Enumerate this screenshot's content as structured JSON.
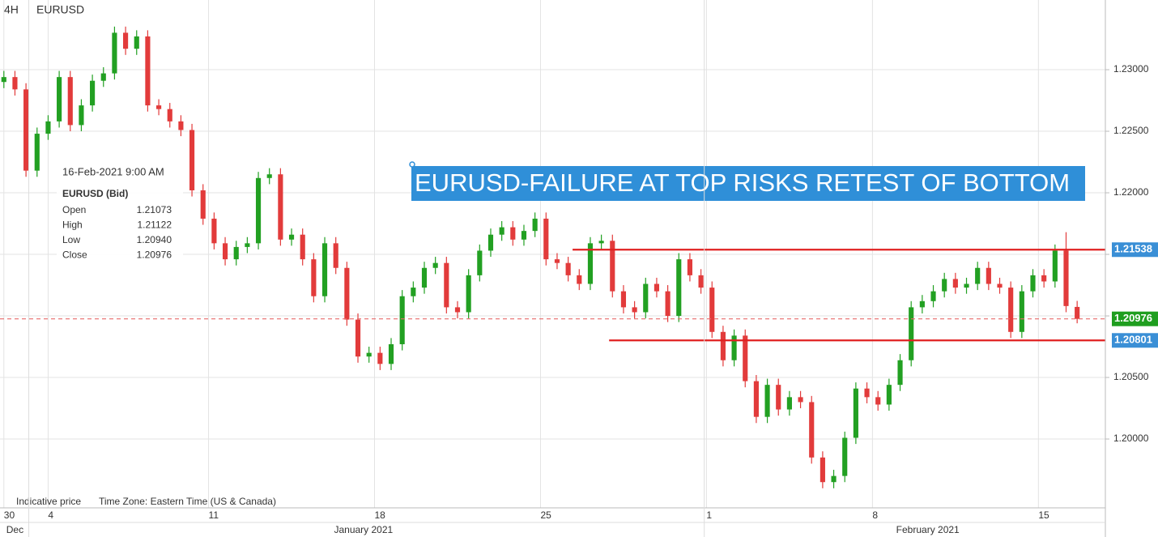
{
  "chart_data": {
    "type": "candlestick",
    "timeframe": "4H",
    "title": "EURUSD",
    "annotation": "EURUSD-FAILURE AT TOP RISKS RETEST OF BOTTOM",
    "footer_left": "Indicative price",
    "footer_right": "Time Zone: Eastern Time (US & Canada)",
    "up_color": "#22a022",
    "down_color": "#e23b3b",
    "grid": true,
    "xlim": [
      -0.7,
      199.1
    ],
    "ylim": [
      1.19441,
      1.23566
    ],
    "xticks": [
      {
        "value": 0,
        "label": "30"
      },
      {
        "value": 8,
        "label": "4"
      },
      {
        "value": 37,
        "label": "11"
      },
      {
        "value": 67,
        "label": "18"
      },
      {
        "value": 97,
        "label": "25"
      },
      {
        "value": 127,
        "label": "1"
      },
      {
        "value": 157,
        "label": "8"
      },
      {
        "value": 187,
        "label": "15"
      }
    ],
    "month_ticks": [
      {
        "value": 2,
        "label": "Dec"
      },
      {
        "value": 65,
        "label": "January 2021"
      },
      {
        "value": 167,
        "label": "February 2021"
      }
    ],
    "month_separators": [
      4.5,
      126.6
    ],
    "yticks": [
      {
        "value": 1.2,
        "label": "1.20000"
      },
      {
        "value": 1.205,
        "label": "1.20500"
      },
      {
        "value": 1.21,
        "label": ""
      },
      {
        "value": 1.215,
        "label": ""
      },
      {
        "value": 1.22,
        "label": "1.22000"
      },
      {
        "value": 1.225,
        "label": "1.22500"
      },
      {
        "value": 1.23,
        "label": "1.23000"
      }
    ],
    "levels": [
      {
        "value": 1.21538,
        "label": "1.21538",
        "x_start": 102.8,
        "color": "#e02020",
        "badge": "#3a8fd6"
      },
      {
        "value": 1.20801,
        "label": "1.20801",
        "x_start": 109.4,
        "color": "#e02020",
        "badge": "#3a8fd6"
      }
    ],
    "last_price": {
      "value": 1.20976,
      "label": "1.20976",
      "color": "#e86a6a",
      "badge": "#1f9e1f"
    },
    "tooltip": {
      "time": "16-Feb-2021 9:00 AM",
      "symbol": "EURUSD (Bid)",
      "rows": [
        {
          "name": "Open",
          "label": "1.21073"
        },
        {
          "name": "High",
          "label": "1.21122"
        },
        {
          "name": "Low",
          "label": "1.20940"
        },
        {
          "name": "Close",
          "label": "1.20976"
        }
      ]
    },
    "x": [
      0,
      2,
      4,
      6,
      8,
      10,
      12,
      14,
      16,
      18,
      20,
      22,
      24,
      26,
      28,
      30,
      32,
      34,
      36,
      38,
      40,
      42,
      44,
      46,
      48,
      50,
      52,
      54,
      56,
      58,
      60,
      62,
      64,
      66,
      68,
      70,
      72,
      74,
      76,
      78,
      80,
      82,
      84,
      86,
      88,
      90,
      92,
      94,
      96,
      98,
      100,
      102,
      104,
      106,
      108,
      110,
      112,
      114,
      116,
      118,
      120,
      122,
      124,
      126,
      128,
      130,
      132,
      134,
      136,
      138,
      140,
      142,
      144,
      146,
      148,
      150,
      152,
      154,
      156,
      158,
      160,
      162,
      164,
      166,
      168,
      170,
      172,
      174,
      176,
      178,
      180,
      182,
      184,
      186,
      188,
      190,
      192,
      194
    ],
    "open": [
      1.229,
      1.2294,
      1.2284,
      1.2218,
      1.2248,
      1.2258,
      1.2294,
      1.2255,
      1.2271,
      1.2291,
      1.2297,
      1.233,
      1.2317,
      1.2327,
      1.2271,
      1.2268,
      1.2258,
      1.2251,
      1.2202,
      1.2179,
      1.2159,
      1.2146,
      1.2156,
      1.2159,
      1.2212,
      1.2215,
      1.2162,
      1.2166,
      1.2146,
      1.2116,
      1.2159,
      1.2139,
      1.2097,
      1.2067,
      1.207,
      1.2061,
      1.2077,
      1.2116,
      1.2123,
      1.2139,
      1.2143,
      1.2107,
      1.2103,
      1.2133,
      1.2153,
      1.2166,
      1.2172,
      1.2162,
      1.2169,
      1.2179,
      1.2146,
      1.2143,
      1.2133,
      1.2126,
      1.2159,
      1.2161,
      1.212,
      1.2107,
      1.2103,
      1.2126,
      1.212,
      1.21,
      1.2146,
      1.2133,
      1.2123,
      1.2087,
      1.2064,
      1.2084,
      1.2047,
      1.2018,
      1.2044,
      1.2024,
      1.2034,
      1.203,
      1.1985,
      1.1965,
      1.197,
      1.2001,
      1.2041,
      1.2034,
      1.2028,
      1.2044,
      1.2064,
      1.2107,
      1.2112,
      1.212,
      1.213,
      1.2123,
      1.2126,
      1.2139,
      1.2126,
      1.2123,
      1.2087,
      1.212,
      1.2133,
      1.2128,
      1.2153,
      1.21073
    ],
    "high": [
      1.2299,
      1.2299,
      1.2289,
      1.2253,
      1.2263,
      1.2299,
      1.2299,
      1.2276,
      1.2296,
      1.2302,
      1.2335,
      1.2335,
      1.2332,
      1.2332,
      1.2276,
      1.2273,
      1.2263,
      1.2256,
      1.2207,
      1.2184,
      1.2164,
      1.2161,
      1.2164,
      1.2217,
      1.222,
      1.222,
      1.2171,
      1.2171,
      1.2151,
      1.2164,
      1.2164,
      1.2144,
      1.2102,
      1.2075,
      1.2075,
      1.2082,
      1.2121,
      1.2128,
      1.2144,
      1.2148,
      1.2148,
      1.2112,
      1.2138,
      1.2158,
      1.2171,
      1.2177,
      1.2177,
      1.2174,
      1.2184,
      1.2184,
      1.2151,
      1.2148,
      1.2138,
      1.2164,
      1.2166,
      1.2166,
      1.2125,
      1.2112,
      1.2131,
      1.2131,
      1.2125,
      1.2151,
      1.2151,
      1.2138,
      1.2128,
      1.2092,
      1.2089,
      1.2089,
      1.2052,
      1.2049,
      1.2049,
      1.2039,
      1.2039,
      1.2035,
      1.199,
      1.1975,
      1.2006,
      1.2046,
      1.2046,
      1.2039,
      1.2049,
      1.2069,
      1.2112,
      1.2117,
      1.2125,
      1.2135,
      1.2135,
      1.2131,
      1.2144,
      1.2144,
      1.2131,
      1.2128,
      1.2125,
      1.2138,
      1.2138,
      1.2158,
      1.2168,
      1.21122
    ],
    "low": [
      1.2285,
      1.2279,
      1.2213,
      1.2213,
      1.2243,
      1.2253,
      1.225,
      1.225,
      1.2266,
      1.2286,
      1.2292,
      1.2312,
      1.2312,
      1.2266,
      1.2263,
      1.2253,
      1.2246,
      1.2197,
      1.2174,
      1.2154,
      1.2141,
      1.2141,
      1.2151,
      1.2154,
      1.2207,
      1.2157,
      1.2157,
      1.2141,
      1.2111,
      1.2111,
      1.2134,
      1.2092,
      1.2062,
      1.2062,
      1.2056,
      1.2056,
      1.2072,
      1.2111,
      1.2118,
      1.2134,
      1.2102,
      1.2098,
      1.2098,
      1.2128,
      1.2148,
      1.2161,
      1.2157,
      1.2157,
      1.2164,
      1.2141,
      1.2138,
      1.2128,
      1.2121,
      1.2121,
      1.2154,
      1.2115,
      1.2102,
      1.2098,
      1.2098,
      1.2115,
      1.2095,
      1.2095,
      1.2128,
      1.2118,
      1.2082,
      1.2059,
      1.2059,
      1.2042,
      1.2013,
      1.2013,
      1.2019,
      1.2019,
      1.2025,
      1.198,
      1.196,
      1.196,
      1.1965,
      1.1996,
      1.2029,
      1.2023,
      1.2023,
      1.2039,
      1.2059,
      1.2102,
      1.2107,
      1.2115,
      1.2118,
      1.2118,
      1.2121,
      1.2121,
      1.2118,
      1.2082,
      1.2082,
      1.2115,
      1.2123,
      1.2123,
      1.2103,
      1.2094
    ],
    "close": [
      1.2294,
      1.2284,
      1.2218,
      1.2248,
      1.2258,
      1.2294,
      1.2255,
      1.2271,
      1.2291,
      1.2297,
      1.233,
      1.2317,
      1.2327,
      1.2271,
      1.2268,
      1.2258,
      1.2251,
      1.2202,
      1.2179,
      1.2159,
      1.2146,
      1.2156,
      1.2159,
      1.2212,
      1.2215,
      1.2162,
      1.2166,
      1.2146,
      1.2116,
      1.2159,
      1.2139,
      1.2097,
      1.2067,
      1.207,
      1.2061,
      1.2077,
      1.2116,
      1.2123,
      1.2139,
      1.2143,
      1.2107,
      1.2103,
      1.2133,
      1.2153,
      1.2166,
      1.2172,
      1.2162,
      1.2169,
      1.2179,
      1.2146,
      1.2143,
      1.2133,
      1.2126,
      1.2159,
      1.2161,
      1.212,
      1.2107,
      1.2103,
      1.2126,
      1.212,
      1.21,
      1.2146,
      1.2133,
      1.2123,
      1.2087,
      1.2064,
      1.2084,
      1.2047,
      1.2018,
      1.2044,
      1.2024,
      1.2034,
      1.203,
      1.1985,
      1.1965,
      1.197,
      1.2001,
      1.2041,
      1.2034,
      1.2028,
      1.2044,
      1.2064,
      1.2107,
      1.2112,
      1.212,
      1.213,
      1.2123,
      1.2126,
      1.2139,
      1.2126,
      1.2123,
      1.2087,
      1.212,
      1.2133,
      1.2128,
      1.2153,
      1.2108,
      1.20976
    ]
  }
}
